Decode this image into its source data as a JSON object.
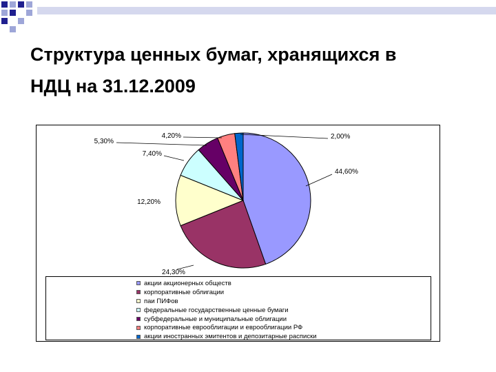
{
  "slide": {
    "title_line1": "Структура ценных бумаг, хранящихся в",
    "title_line2": "НДЦ на 31.12.2009"
  },
  "colors": {
    "deco_dark": "#1f1f8f",
    "deco_light": "#9ea6d8"
  },
  "chart_data": {
    "type": "pie",
    "title": "",
    "legend_position": "bottom",
    "slices": [
      {
        "label": "акции акционерных обществ",
        "value": 44.6,
        "display": "44,60%",
        "color": "#9999ff"
      },
      {
        "label": "корпоративные облигации",
        "value": 24.3,
        "display": "24,30%",
        "color": "#993366"
      },
      {
        "label": "паи ПИФов",
        "value": 12.2,
        "display": "12,20%",
        "color": "#ffffcc"
      },
      {
        "label": "федеральные государственные ценные бумаги",
        "value": 7.4,
        "display": "7,40%",
        "color": "#ccffff"
      },
      {
        "label": "субфедеральные и муниципальные облигации",
        "value": 5.3,
        "display": "5,30%",
        "color": "#660066"
      },
      {
        "label": "корпоративные еврооблигации и еврооблигации РФ",
        "value": 4.2,
        "display": "4,20%",
        "color": "#ff8080"
      },
      {
        "label": "акции иностранных эмитентов и депозитарные расписки",
        "value": 2.0,
        "display": "2,00%",
        "color": "#0066cc"
      }
    ]
  }
}
